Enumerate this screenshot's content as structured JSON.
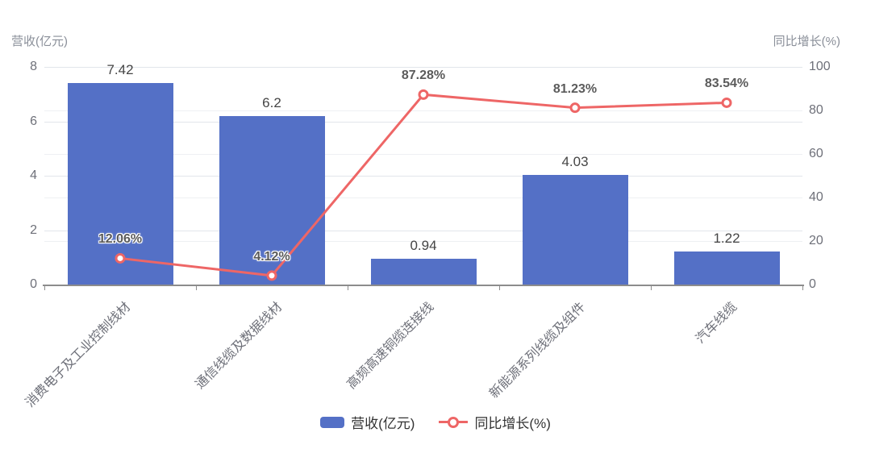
{
  "chart_data": {
    "type": "bar",
    "combo": "bar + line, dual y-axis",
    "categories": [
      "消费电子及工业控制线材",
      "通信线缆及数据线材",
      "高频高速铜缆连接线",
      "新能源系列线缆及组件",
      "汽车线缆"
    ],
    "series": [
      {
        "name": "营收(亿元)",
        "type": "bar",
        "axis": "left",
        "values": [
          7.42,
          6.2,
          0.94,
          4.03,
          1.22
        ],
        "labels": [
          "7.42",
          "6.2",
          "0.94",
          "4.03",
          "1.22"
        ],
        "color": "#5470c6"
      },
      {
        "name": "同比增长(%)",
        "type": "line",
        "axis": "right",
        "values": [
          12.06,
          4.12,
          87.28,
          81.23,
          83.54
        ],
        "labels": [
          "12.06%",
          "4.12%",
          "87.28%",
          "81.23%",
          "83.54%"
        ],
        "color": "#ee6666",
        "marker": "hollow-circle"
      }
    ],
    "left_axis": {
      "title": "营收(亿元)",
      "ticks": [
        0,
        2,
        4,
        6,
        8
      ],
      "range": [
        0,
        8
      ]
    },
    "right_axis": {
      "title": "同比增长(%)",
      "ticks": [
        0,
        20,
        40,
        60,
        80,
        100
      ],
      "range": [
        0,
        100
      ]
    },
    "legend": {
      "position": "bottom",
      "items": [
        "营收(亿元)",
        "同比增长(%)"
      ]
    },
    "grid": true
  },
  "colors": {
    "bar": "#5470c6",
    "line": "#ee6666",
    "grid_major": "#e2e5eb",
    "grid_minor": "#eef0f3",
    "axis_line": "#8c8c8c",
    "tick_text": "#6e7079"
  }
}
